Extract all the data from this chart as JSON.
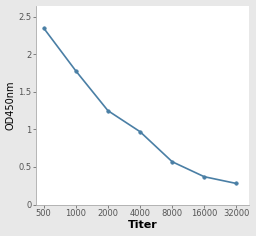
{
  "x_values": [
    500,
    1000,
    2000,
    4000,
    8000,
    16000,
    32000
  ],
  "y_values": [
    2.35,
    1.78,
    1.25,
    0.97,
    0.57,
    0.37,
    0.28
  ],
  "x_label": "Titer",
  "y_label": "OD450nm",
  "x_ticks": [
    500,
    1000,
    2000,
    4000,
    8000,
    16000,
    32000
  ],
  "x_tick_labels": [
    "500",
    "1000",
    "2000",
    "4000",
    "8000",
    "16000",
    "32000"
  ],
  "y_ticks": [
    0,
    0.5,
    1,
    1.5,
    2,
    2.5
  ],
  "y_tick_labels": [
    "0",
    "0.5",
    "1",
    "1.5",
    "2",
    "2.5"
  ],
  "ylim": [
    0,
    2.65
  ],
  "line_color": "#4a7fa5",
  "marker": "o",
  "marker_size": 2.5,
  "line_width": 1.2,
  "background_color": "#e8e8e8",
  "plot_bg_color": "#ffffff",
  "xlabel_fontsize": 8,
  "ylabel_fontsize": 7,
  "tick_fontsize": 6,
  "xlabel_fontweight": "bold",
  "spine_color": "#aaaaaa"
}
